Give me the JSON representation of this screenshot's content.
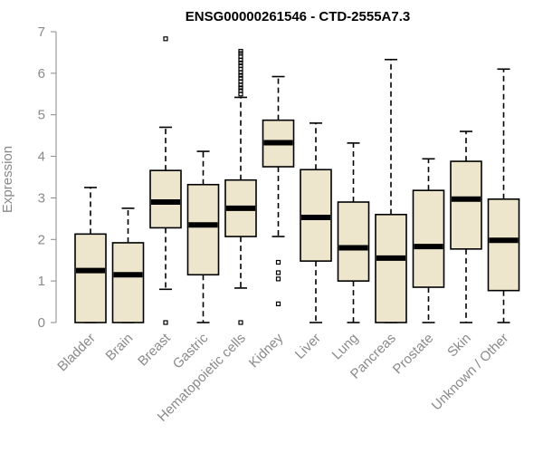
{
  "chart_data": {
    "type": "boxplot",
    "title": "ENSG00000261546 - CTD-2555A7.3",
    "xlabel": "",
    "ylabel": "Expression",
    "ylim": [
      0,
      7
    ],
    "yticks": [
      0,
      1,
      2,
      3,
      4,
      5,
      6,
      7
    ],
    "colors": {
      "box_fill": "#ede6cd",
      "stroke": "#000000",
      "axis": "#8a8a8a"
    },
    "categories": [
      "Bladder",
      "Brain",
      "Breast",
      "Gastric",
      "Hematopoietic cells",
      "Kidney",
      "Liver",
      "Lung",
      "Pancreas",
      "Prostate",
      "Skin",
      "Unknown / Other"
    ],
    "boxes": [
      {
        "category": "Bladder",
        "min": 0,
        "q1": 0,
        "median": 1.25,
        "q3": 2.13,
        "max": 3.25,
        "outliers": []
      },
      {
        "category": "Brain",
        "min": 0,
        "q1": 0,
        "median": 1.15,
        "q3": 1.92,
        "max": 2.75,
        "outliers": []
      },
      {
        "category": "Breast",
        "min": 0.8,
        "q1": 2.28,
        "median": 2.9,
        "q3": 3.66,
        "max": 4.7,
        "outliers": [
          6.83,
          0
        ]
      },
      {
        "category": "Gastric",
        "min": 0,
        "q1": 1.15,
        "median": 2.35,
        "q3": 3.32,
        "max": 4.12,
        "outliers": []
      },
      {
        "category": "Hematopoietic cells",
        "min": 0.83,
        "q1": 2.07,
        "median": 2.75,
        "q3": 3.43,
        "max": 5.42,
        "outliers": [
          0,
          5.5,
          5.58,
          5.65,
          5.72,
          5.8,
          5.88,
          5.95,
          6.02,
          6.1,
          6.18,
          6.25,
          6.32,
          6.4,
          6.48,
          6.53
        ]
      },
      {
        "category": "Kidney",
        "min": 2.07,
        "q1": 3.75,
        "median": 4.33,
        "q3": 4.87,
        "max": 5.92,
        "outliers": [
          1.45,
          1.2,
          1.05,
          0.45
        ]
      },
      {
        "category": "Liver",
        "min": 0,
        "q1": 1.48,
        "median": 2.53,
        "q3": 3.68,
        "max": 4.8,
        "outliers": []
      },
      {
        "category": "Lung",
        "min": 0,
        "q1": 1.0,
        "median": 1.8,
        "q3": 2.9,
        "max": 4.32,
        "outliers": []
      },
      {
        "category": "Pancreas",
        "min": 0,
        "q1": 0,
        "median": 1.55,
        "q3": 2.6,
        "max": 6.33,
        "outliers": []
      },
      {
        "category": "Prostate",
        "min": 0,
        "q1": 0.85,
        "median": 1.83,
        "q3": 3.18,
        "max": 3.94,
        "outliers": []
      },
      {
        "category": "Skin",
        "min": 0,
        "q1": 1.77,
        "median": 2.97,
        "q3": 3.88,
        "max": 4.6,
        "outliers": []
      },
      {
        "category": "Unknown / Other",
        "min": 0,
        "q1": 0.77,
        "median": 1.98,
        "q3": 2.97,
        "max": 6.1,
        "outliers": []
      }
    ]
  }
}
